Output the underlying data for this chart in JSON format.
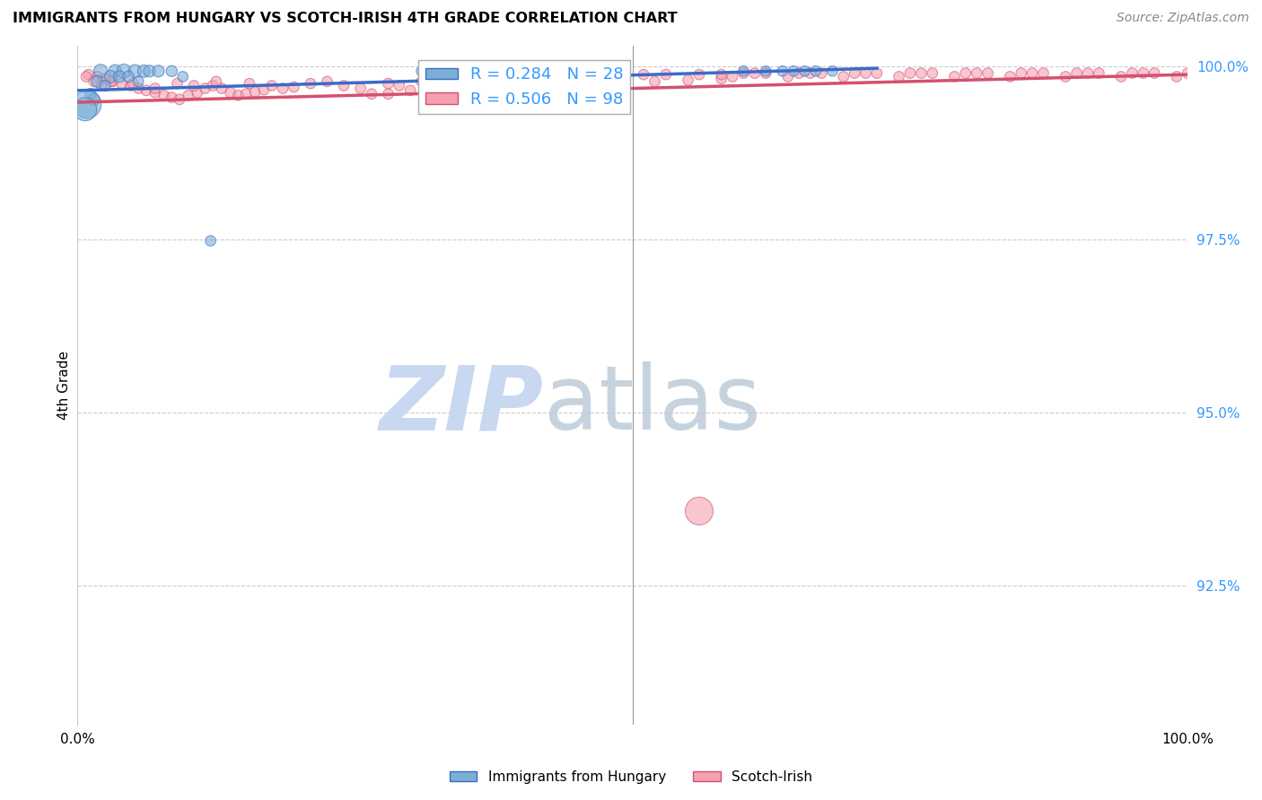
{
  "title": "IMMIGRANTS FROM HUNGARY VS SCOTCH-IRISH 4TH GRADE CORRELATION CHART",
  "source": "Source: ZipAtlas.com",
  "ylabel": "4th Grade",
  "blue_color": "#7BAFD4",
  "pink_color": "#F4A0B0",
  "blue_line_color": "#3A6BC9",
  "pink_line_color": "#D45070",
  "legend_blue_R": "R = 0.284",
  "legend_blue_N": "N = 28",
  "legend_pink_R": "R = 0.506",
  "legend_pink_N": "N = 98",
  "xlim": [
    0.0,
    1.0
  ],
  "ylim": [
    0.905,
    1.003
  ],
  "yticks": [
    0.925,
    0.95,
    0.975,
    1.0
  ],
  "ytick_labels": [
    "92.5%",
    "95.0%",
    "97.5%",
    "100.0%"
  ],
  "blue_trend_x": [
    0.0,
    0.72
  ],
  "blue_trend_y": [
    0.9965,
    0.9997
  ],
  "pink_trend_x": [
    0.0,
    1.0
  ],
  "pink_trend_y": [
    0.9948,
    0.9988
  ],
  "blue_points": {
    "x": [
      0.021,
      0.034,
      0.042,
      0.052,
      0.06,
      0.065,
      0.073,
      0.085,
      0.03,
      0.038,
      0.046,
      0.018,
      0.025,
      0.055,
      0.31,
      0.6,
      0.62,
      0.635,
      0.645,
      0.655,
      0.665,
      0.68,
      0.012,
      0.015,
      0.009,
      0.007,
      0.095,
      0.12
    ],
    "y": [
      0.9993,
      0.9993,
      0.9993,
      0.9993,
      0.9993,
      0.9993,
      0.9993,
      0.9993,
      0.9985,
      0.9985,
      0.9985,
      0.9978,
      0.9972,
      0.9978,
      0.9993,
      0.9993,
      0.9993,
      0.9993,
      0.9993,
      0.9993,
      0.9993,
      0.9993,
      0.996,
      0.9952,
      0.9945,
      0.9938,
      0.9985,
      0.9748
    ],
    "sizes": [
      120,
      110,
      130,
      110,
      100,
      90,
      90,
      80,
      100,
      90,
      80,
      90,
      80,
      70,
      70,
      70,
      70,
      70,
      70,
      70,
      70,
      70,
      80,
      90,
      500,
      350,
      70,
      70
    ]
  },
  "pink_points": {
    "x": [
      0.01,
      0.018,
      0.025,
      0.032,
      0.04,
      0.048,
      0.055,
      0.062,
      0.07,
      0.078,
      0.085,
      0.092,
      0.1,
      0.108,
      0.115,
      0.122,
      0.13,
      0.138,
      0.145,
      0.152,
      0.16,
      0.168,
      0.008,
      0.015,
      0.022,
      0.03,
      0.175,
      0.185,
      0.195,
      0.21,
      0.225,
      0.24,
      0.255,
      0.28,
      0.31,
      0.34,
      0.37,
      0.4,
      0.43,
      0.46,
      0.49,
      0.52,
      0.55,
      0.58,
      0.28,
      0.32,
      0.43,
      0.48,
      0.05,
      0.09,
      0.07,
      0.105,
      0.125,
      0.155,
      0.29,
      0.35,
      0.265,
      0.3,
      0.6,
      0.65,
      0.7,
      0.75,
      0.8,
      0.85,
      0.9,
      0.95,
      1.0,
      0.62,
      0.67,
      0.72,
      0.77,
      0.82,
      0.87,
      0.92,
      0.97,
      0.58,
      0.56,
      0.53,
      0.51,
      0.59,
      0.64,
      0.69,
      0.74,
      0.79,
      0.84,
      0.89,
      0.94,
      0.99,
      0.61,
      0.66,
      0.71,
      0.76,
      0.81,
      0.86,
      0.91,
      0.96,
      0.45,
      0.56
    ],
    "y": [
      0.9988,
      0.9985,
      0.9982,
      0.9978,
      0.9975,
      0.9972,
      0.9968,
      0.9965,
      0.9962,
      0.9958,
      0.9955,
      0.9952,
      0.9958,
      0.9962,
      0.9968,
      0.9972,
      0.9968,
      0.9962,
      0.9958,
      0.996,
      0.9963,
      0.9966,
      0.9985,
      0.9978,
      0.9972,
      0.9978,
      0.9972,
      0.9968,
      0.997,
      0.9975,
      0.9978,
      0.9972,
      0.9968,
      0.9975,
      0.9978,
      0.9975,
      0.998,
      0.9978,
      0.9975,
      0.9972,
      0.9975,
      0.9978,
      0.998,
      0.9982,
      0.996,
      0.9965,
      0.9965,
      0.9968,
      0.9975,
      0.9975,
      0.9968,
      0.9972,
      0.9978,
      0.9975,
      0.9972,
      0.9978,
      0.996,
      0.9965,
      0.999,
      0.999,
      0.999,
      0.999,
      0.999,
      0.999,
      0.999,
      0.999,
      0.999,
      0.999,
      0.999,
      0.999,
      0.999,
      0.999,
      0.999,
      0.999,
      0.999,
      0.9988,
      0.9988,
      0.9988,
      0.9988,
      0.9985,
      0.9985,
      0.9985,
      0.9985,
      0.9985,
      0.9985,
      0.9985,
      0.9985,
      0.9985,
      0.999,
      0.999,
      0.999,
      0.999,
      0.999,
      0.999,
      0.999,
      0.999,
      0.9965,
      0.9358
    ],
    "sizes": [
      70,
      70,
      70,
      70,
      70,
      70,
      70,
      70,
      70,
      70,
      70,
      70,
      70,
      70,
      70,
      70,
      70,
      70,
      70,
      70,
      70,
      70,
      70,
      70,
      70,
      70,
      70,
      70,
      70,
      70,
      70,
      70,
      70,
      70,
      70,
      70,
      70,
      70,
      70,
      70,
      70,
      70,
      70,
      70,
      70,
      70,
      70,
      70,
      70,
      70,
      70,
      70,
      70,
      70,
      70,
      70,
      70,
      70,
      70,
      70,
      70,
      70,
      70,
      70,
      70,
      70,
      70,
      70,
      70,
      70,
      70,
      70,
      70,
      70,
      70,
      70,
      70,
      70,
      70,
      70,
      70,
      70,
      70,
      70,
      70,
      70,
      70,
      70,
      70,
      70,
      70,
      70,
      70,
      70,
      70,
      70,
      70,
      500
    ]
  }
}
